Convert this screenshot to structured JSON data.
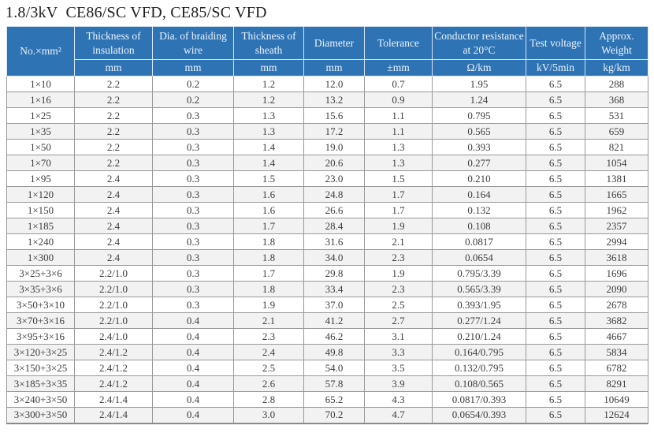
{
  "page": {
    "title": "1.8/3kV  CE86/SC VFD, CE85/SC VFD"
  },
  "colors": {
    "header_bg": "#2e74b5",
    "header_text": "#edf3fa",
    "grid_line": "#999999",
    "row_alt_bg": "#f2f2f2",
    "body_text": "#3d3d3d"
  },
  "table": {
    "corner_header": "No.×mm²",
    "columns": [
      {
        "label": "Thickness of insulation",
        "unit": "mm"
      },
      {
        "label": "Dia. of braiding wire",
        "unit": "mm"
      },
      {
        "label": "Thickness of sheath",
        "unit": "mm"
      },
      {
        "label": "Diameter",
        "unit": "mm"
      },
      {
        "label": "Tolerance",
        "unit": "±mm"
      },
      {
        "label": "Conductor resistance at 20°C",
        "unit": "Ω/km"
      },
      {
        "label": "Test voltage",
        "unit": "kV/5min"
      },
      {
        "label": "Approx. Weight",
        "unit": "kg/km"
      }
    ],
    "rows": [
      [
        "1×10",
        "2.2",
        "0.2",
        "1.2",
        "12.0",
        "0.7",
        "1.95",
        "6.5",
        "288"
      ],
      [
        "1×16",
        "2.2",
        "0.2",
        "1.2",
        "13.2",
        "0.9",
        "1.24",
        "6.5",
        "368"
      ],
      [
        "1×25",
        "2.2",
        "0.3",
        "1.3",
        "15.6",
        "1.1",
        "0.795",
        "6.5",
        "531"
      ],
      [
        "1×35",
        "2.2",
        "0.3",
        "1.3",
        "17.2",
        "1.1",
        "0.565",
        "6.5",
        "659"
      ],
      [
        "1×50",
        "2.2",
        "0.3",
        "1.4",
        "19.0",
        "1.3",
        "0.393",
        "6.5",
        "821"
      ],
      [
        "1×70",
        "2.2",
        "0.3",
        "1.4",
        "20.6",
        "1.3",
        "0.277",
        "6.5",
        "1054"
      ],
      [
        "1×95",
        "2.4",
        "0.3",
        "1.5",
        "23.0",
        "1.5",
        "0.210",
        "6.5",
        "1381"
      ],
      [
        "1×120",
        "2.4",
        "0.3",
        "1.6",
        "24.8",
        "1.7",
        "0.164",
        "6.5",
        "1665"
      ],
      [
        "1×150",
        "2.4",
        "0.3",
        "1.6",
        "26.6",
        "1.7",
        "0.132",
        "6.5",
        "1962"
      ],
      [
        "1×185",
        "2.4",
        "0.3",
        "1.7",
        "28.4",
        "1.9",
        "0.108",
        "6.5",
        "2357"
      ],
      [
        "1×240",
        "2.4",
        "0.3",
        "1.8",
        "31.6",
        "2.1",
        "0.0817",
        "6.5",
        "2994"
      ],
      [
        "1×300",
        "2.4",
        "0.3",
        "1.8",
        "34.0",
        "2.3",
        "0.0654",
        "6.5",
        "3618"
      ],
      [
        "3×25+3×6",
        "2.2/1.0",
        "0.3",
        "1.7",
        "29.8",
        "1.9",
        "0.795/3.39",
        "6.5",
        "1696"
      ],
      [
        "3×35+3×6",
        "2.2/1.0",
        "0.3",
        "1.8",
        "33.4",
        "2.3",
        "0.565/3.39",
        "6.5",
        "2090"
      ],
      [
        "3×50+3×10",
        "2.2/1.0",
        "0.3",
        "1.9",
        "37.0",
        "2.5",
        "0.393/1.95",
        "6.5",
        "2678"
      ],
      [
        "3×70+3×16",
        "2.2/1.0",
        "0.4",
        "2.1",
        "41.2",
        "2.7",
        "0.277/1.24",
        "6.5",
        "3682"
      ],
      [
        "3×95+3×16",
        "2.4/1.0",
        "0.4",
        "2.3",
        "46.2",
        "3.1",
        "0.210/1.24",
        "6.5",
        "4667"
      ],
      [
        "3×120+3×25",
        "2.4/1.2",
        "0.4",
        "2.4",
        "49.8",
        "3.3",
        "0.164/0.795",
        "6.5",
        "5834"
      ],
      [
        "3×150+3×25",
        "2.4/1.2",
        "0.4",
        "2.5",
        "54.0",
        "3.5",
        "0.132/0.795",
        "6.5",
        "6782"
      ],
      [
        "3×185+3×35",
        "2.4/1.2",
        "0.4",
        "2.6",
        "57.8",
        "3.9",
        "0.108/0.565",
        "6.5",
        "8291"
      ],
      [
        "3×240+3×50",
        "2.4/1.4",
        "0.4",
        "2.8",
        "65.2",
        "4.3",
        "0.0817/0.393",
        "6.5",
        "10649"
      ],
      [
        "3×300+3×50",
        "2.4/1.4",
        "0.4",
        "3.0",
        "70.2",
        "4.7",
        "0.0654/0.393",
        "6.5",
        "12624"
      ]
    ]
  }
}
